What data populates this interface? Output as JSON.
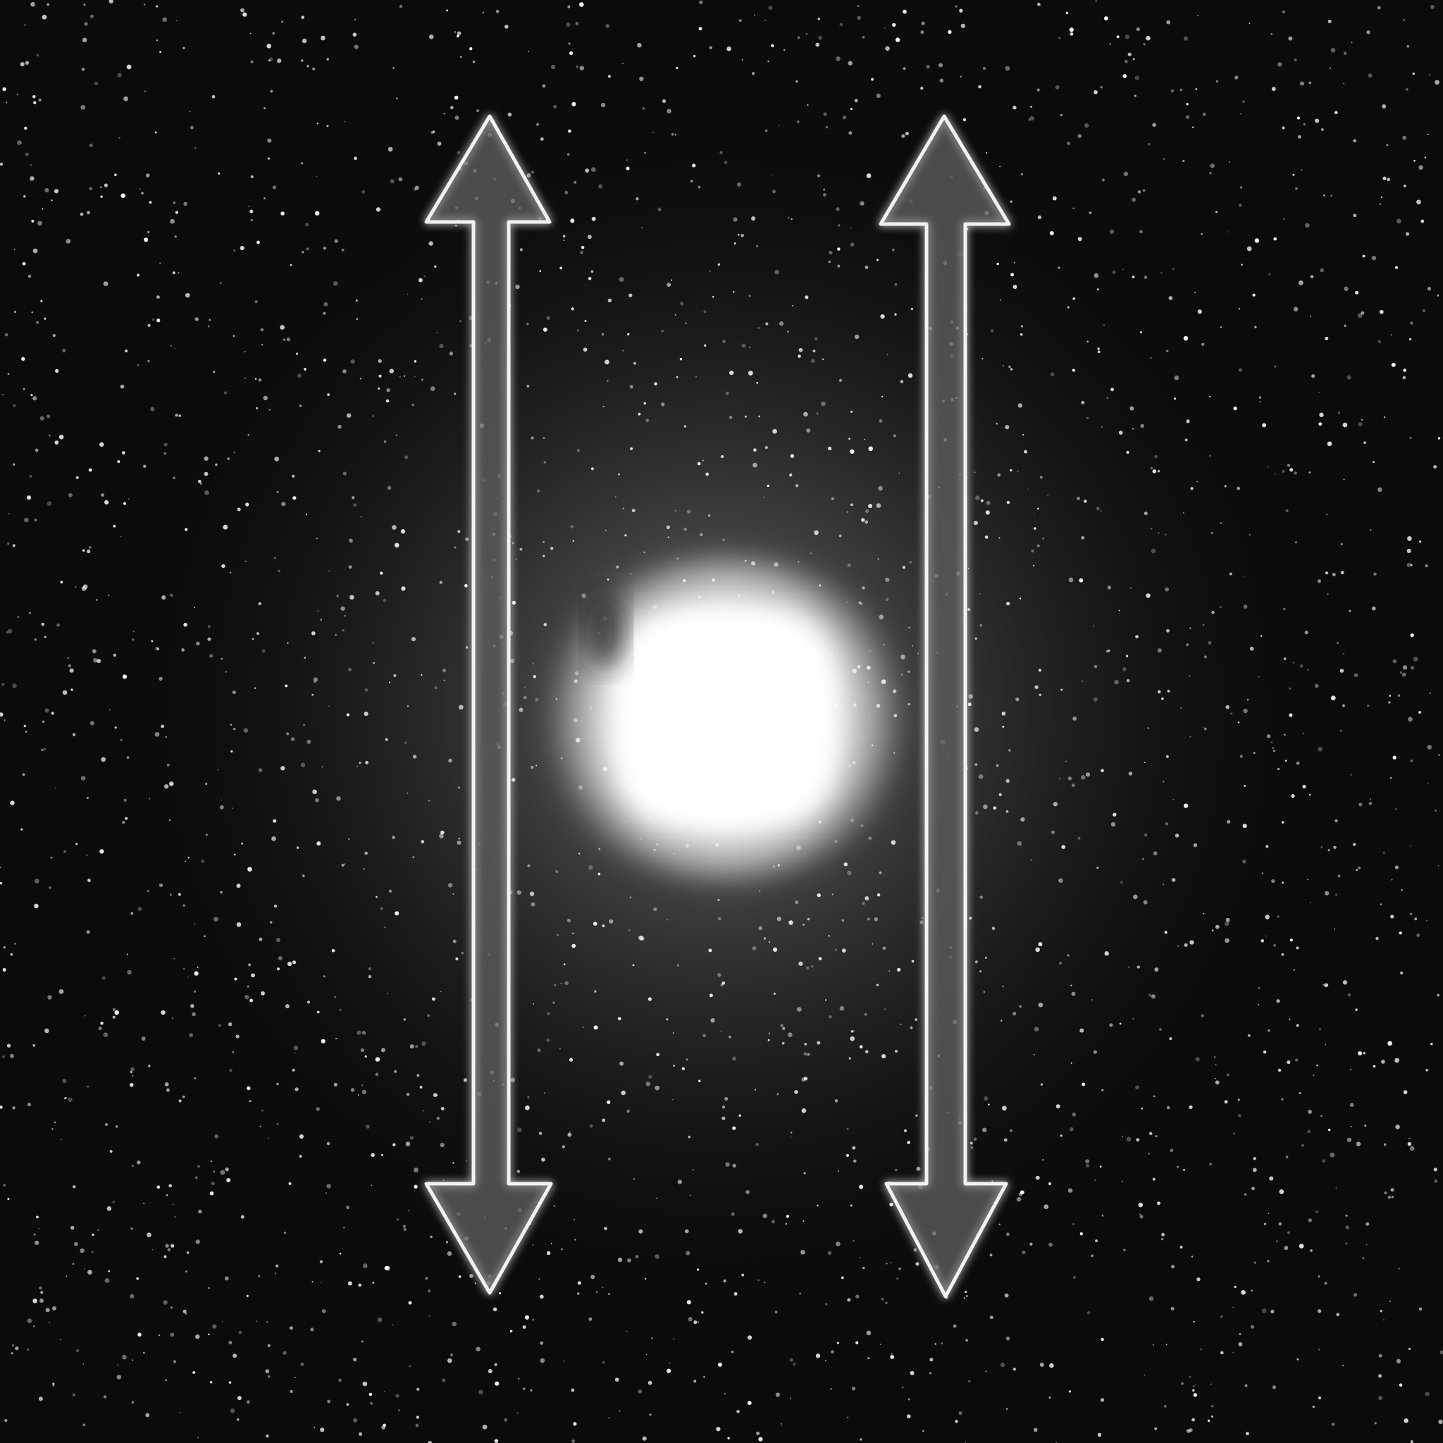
{
  "image": {
    "subject": "glowing-light-with-bidirectional-arrows",
    "background_color": "#0b0b0b",
    "glow_color": "#ffffff",
    "haze_color": "#8a8a8a",
    "arrow_outline_color": "#f2f2f2",
    "arrow_fill_color": "#5a5a5a",
    "arrow_count": 2,
    "arrow_style": "double-headed-vertical",
    "speckle_color": "#ffffff"
  }
}
